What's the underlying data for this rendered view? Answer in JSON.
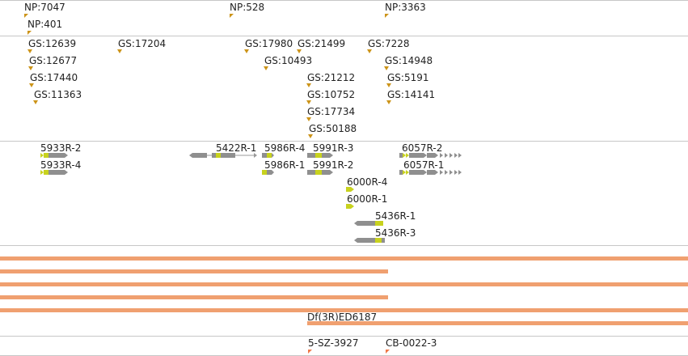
{
  "colors": {
    "np_marker": "#cc9419",
    "gs_marker": "#cc9419",
    "exon_coding": "#c8d21e",
    "exon_noncoding": "#8f8f8f",
    "intron": "#9a9a9a",
    "deficiency_bar": "#f0a070",
    "ss_marker": "#f07848"
  },
  "np_track": {
    "labels": [
      "NP:7047",
      "NP:528",
      "NP:3363",
      "NP:401"
    ]
  },
  "gs_track": {
    "labels": [
      "GS:12639",
      "GS:17204",
      "GS:17980",
      "GS:21499",
      "GS:7228",
      "GS:12677",
      "GS:10493",
      "GS:14948",
      "GS:17440",
      "GS:21212",
      "GS:5191",
      "GS:11363",
      "GS:10752",
      "GS:14141",
      "GS:17734",
      "GS:50188"
    ]
  },
  "transcript_track": {
    "labels": [
      "5933R-2",
      "5422R-1",
      "5986R-4",
      "5991R-3",
      "6057R-2",
      "5933R-4",
      "5986R-1",
      "5991R-2",
      "6057R-1",
      "6000R-4",
      "6000R-1",
      "5436R-1",
      "5436R-3"
    ]
  },
  "deficiency_track": {
    "labels": [
      "Df(3R)ED6187"
    ]
  },
  "ss_track": {
    "labels": [
      "5-SZ-3927",
      "CB-0022-3"
    ]
  }
}
